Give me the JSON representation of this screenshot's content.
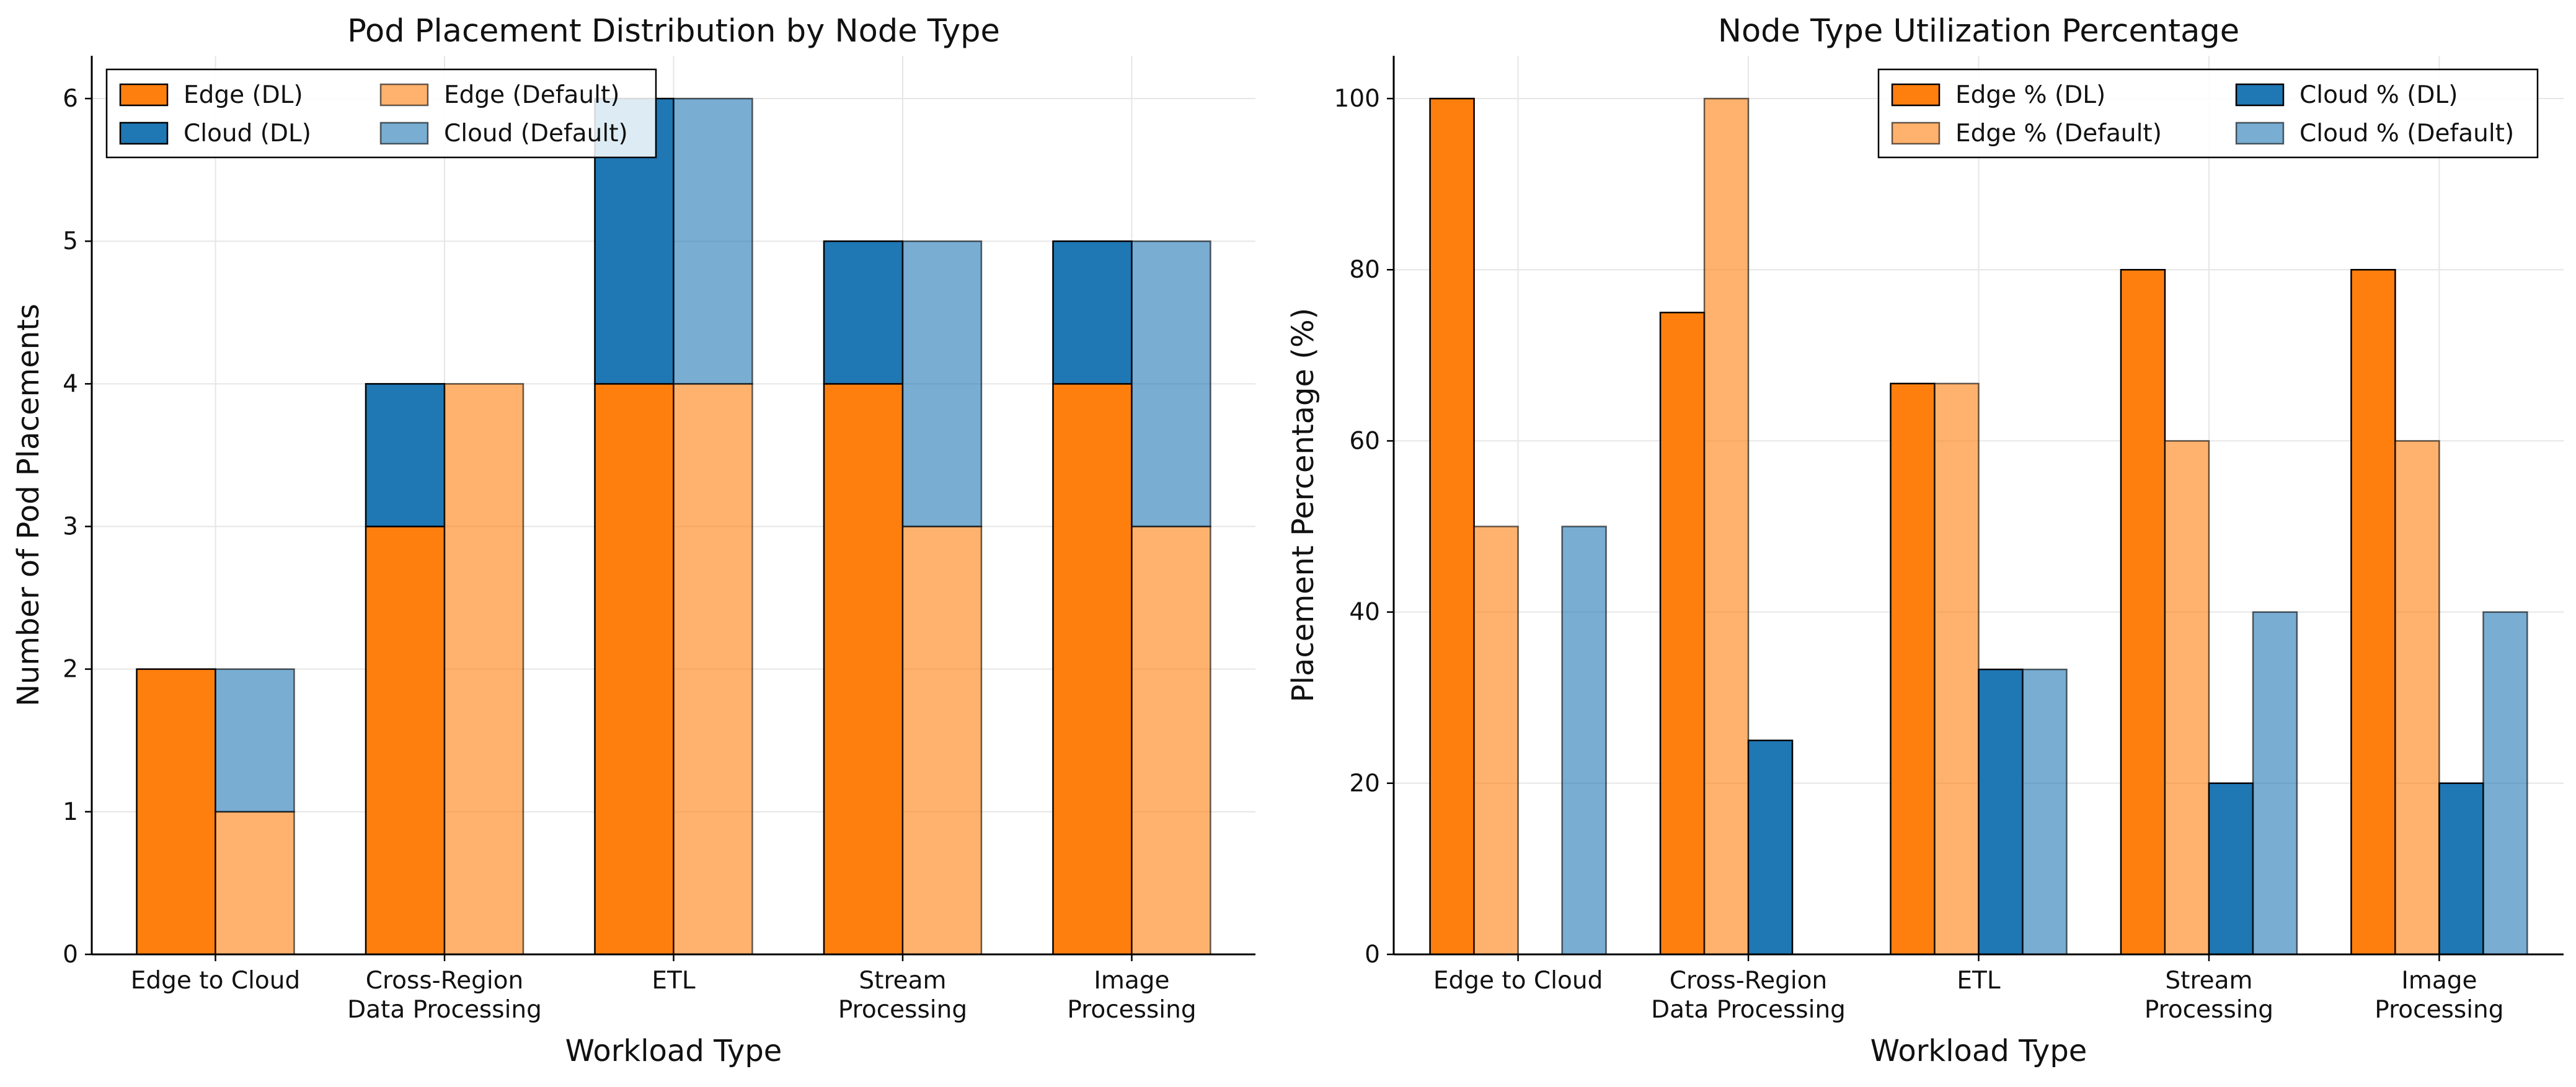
{
  "chart_data": [
    {
      "type": "bar",
      "stacked": true,
      "title": "Pod Placement Distribution by Node Type",
      "xlabel": "Workload Type",
      "ylabel": "Number of Pod Placements",
      "categories": [
        "Edge to Cloud",
        "Cross-Region\nData Processing",
        "ETL",
        "Stream\nProcessing",
        "Image\nProcessing"
      ],
      "ylim": [
        0,
        6.3
      ],
      "yticks": [
        0,
        1,
        2,
        3,
        4,
        5,
        6
      ],
      "grid": true,
      "legend_position": "top-left",
      "legend_columns": 2,
      "series": [
        {
          "name": "Edge (DL)",
          "group": "DL",
          "stack": "bottom",
          "color": "#ff7f0e",
          "alpha": 1.0,
          "values": [
            2,
            3,
            4,
            4,
            4
          ]
        },
        {
          "name": "Cloud (DL)",
          "group": "DL",
          "stack": "top",
          "color": "#1f77b4",
          "alpha": 1.0,
          "values": [
            0,
            1,
            2,
            1,
            1
          ]
        },
        {
          "name": "Edge (Default)",
          "group": "Default",
          "stack": "bottom",
          "color": "#ff7f0e",
          "alpha": 0.6,
          "values": [
            1,
            4,
            4,
            3,
            3
          ]
        },
        {
          "name": "Cloud (Default)",
          "group": "Default",
          "stack": "top",
          "color": "#1f77b4",
          "alpha": 0.6,
          "values": [
            1,
            0,
            2,
            2,
            2
          ]
        }
      ]
    },
    {
      "type": "bar",
      "stacked": false,
      "title": "Node Type Utilization Percentage",
      "xlabel": "Workload Type",
      "ylabel": "Placement Percentage (%)",
      "categories": [
        "Edge to Cloud",
        "Cross-Region\nData Processing",
        "ETL",
        "Stream\nProcessing",
        "Image\nProcessing"
      ],
      "ylim": [
        0,
        105
      ],
      "yticks": [
        0,
        20,
        40,
        60,
        80,
        100
      ],
      "grid": true,
      "legend_position": "top-right",
      "legend_columns": 2,
      "series": [
        {
          "name": "Edge % (DL)",
          "color": "#ff7f0e",
          "alpha": 1.0,
          "values": [
            100,
            75,
            66.7,
            80,
            80
          ]
        },
        {
          "name": "Edge % (Default)",
          "color": "#ff7f0e",
          "alpha": 0.6,
          "values": [
            50,
            100,
            66.7,
            60,
            60
          ]
        },
        {
          "name": "Cloud % (DL)",
          "color": "#1f77b4",
          "alpha": 1.0,
          "values": [
            0,
            25,
            33.3,
            20,
            20
          ]
        },
        {
          "name": "Cloud % (Default)",
          "color": "#1f77b4",
          "alpha": 0.6,
          "values": [
            50,
            0,
            33.3,
            40,
            40
          ]
        }
      ]
    }
  ]
}
